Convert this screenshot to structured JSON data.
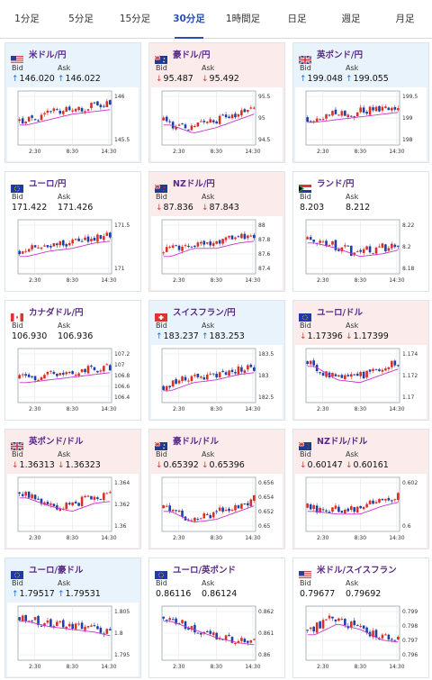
{
  "tabs": [
    {
      "label": "1分足",
      "active": false
    },
    {
      "label": "5分足",
      "active": false
    },
    {
      "label": "15分足",
      "active": false
    },
    {
      "label": "30分足",
      "active": true
    },
    {
      "label": "1時間足",
      "active": false
    },
    {
      "label": "日足",
      "active": false
    },
    {
      "label": "週足",
      "active": false
    },
    {
      "label": "月足",
      "active": false
    }
  ],
  "labels": {
    "bid": "Bid",
    "ask": "Ask"
  },
  "colors": {
    "up_bg": "#e9f3fc",
    "down_bg": "#fbebeb",
    "up_arrow": "#1c6fcf",
    "down_arrow": "#d23a3a",
    "candle_up": "#d93025",
    "candle_down": "#1f3fa8",
    "ma_line": "#cc33cc"
  },
  "cards": [
    {
      "name": "米ドル/円",
      "flag": "us",
      "dir": "up",
      "bid": "146.020",
      "ask": "146.022",
      "yticks": [
        "146",
        "145.5"
      ],
      "xticks": [
        "2:30",
        "8:30",
        "14:30"
      ],
      "seed": 1,
      "trend": [
        0.55,
        0.45,
        0.35,
        0.3,
        0.25
      ]
    },
    {
      "name": "豪ドル/円",
      "flag": "au",
      "dir": "down",
      "bid": "95.487",
      "ask": "95.492",
      "yticks": [
        "95.5",
        "95",
        "94.5"
      ],
      "xticks": [
        "2:30",
        "8:30",
        "14:30"
      ],
      "seed": 2,
      "trend": [
        0.55,
        0.7,
        0.6,
        0.45,
        0.3
      ]
    },
    {
      "name": "英ポンド/円",
      "flag": "gb",
      "dir": "up",
      "bid": "199.048",
      "ask": "199.055",
      "yticks": [
        "199.5",
        "199",
        "198"
      ],
      "xticks": [
        "2:30",
        "8:30",
        "14:30"
      ],
      "seed": 3,
      "trend": [
        0.5,
        0.45,
        0.4,
        0.35,
        0.3
      ]
    },
    {
      "name": "ユーロ/円",
      "flag": "eu",
      "dir": "flat",
      "bid": "171.422",
      "ask": "171.426",
      "yticks": [
        "171.5",
        "171"
      ],
      "xticks": [
        "2:30",
        "8:30",
        "14:30"
      ],
      "seed": 4,
      "trend": [
        0.6,
        0.5,
        0.45,
        0.35,
        0.3
      ]
    },
    {
      "name": "NZドル/円",
      "flag": "nz",
      "dir": "down",
      "bid": "87.836",
      "ask": "87.843",
      "yticks": [
        "88",
        "87.8",
        "87.6",
        "87.4"
      ],
      "xticks": [
        "2:30",
        "8:30",
        "14:30"
      ],
      "seed": 5,
      "trend": [
        0.6,
        0.45,
        0.45,
        0.35,
        0.3
      ]
    },
    {
      "name": "ランド/円",
      "flag": "za",
      "dir": "flat",
      "bid": "8.203",
      "ask": "8.212",
      "yticks": [
        "8.22",
        "8.2",
        "8.18"
      ],
      "xticks": [
        "2:30",
        "8:30",
        "14:30"
      ],
      "seed": 6,
      "trend": [
        0.35,
        0.45,
        0.6,
        0.55,
        0.45
      ]
    },
    {
      "name": "カナダドル/円",
      "flag": "ca",
      "dir": "flat",
      "bid": "106.930",
      "ask": "106.936",
      "yticks": [
        "107.2",
        "107",
        "106.8",
        "106.6",
        "106.4"
      ],
      "xticks": [
        "2:30",
        "8:30",
        "14:30"
      ],
      "seed": 7,
      "trend": [
        0.55,
        0.5,
        0.45,
        0.4,
        0.35
      ]
    },
    {
      "name": "スイスフラン/円",
      "flag": "ch",
      "dir": "up",
      "bid": "183.237",
      "ask": "183.253",
      "yticks": [
        "183.5",
        "183",
        "182.5"
      ],
      "xticks": [
        "2:30",
        "8:30",
        "14:30"
      ],
      "seed": 8,
      "trend": [
        0.7,
        0.55,
        0.5,
        0.4,
        0.35
      ]
    },
    {
      "name": "ユーロ/ドル",
      "flag": "eu",
      "dir": "down",
      "bid": "1.17396",
      "ask": "1.17399",
      "yticks": [
        "1.174",
        "1.172",
        "1.17"
      ],
      "xticks": [
        "2:30",
        "8:30",
        "14:30"
      ],
      "seed": 9,
      "trend": [
        0.25,
        0.5,
        0.55,
        0.4,
        0.25
      ]
    },
    {
      "name": "英ポンド/ドル",
      "flag": "gb",
      "dir": "down",
      "bid": "1.36313",
      "ask": "1.36323",
      "yticks": [
        "1.364",
        "1.362",
        "1.36"
      ],
      "xticks": [
        "2:30",
        "8:30",
        "14:30"
      ],
      "seed": 10,
      "trend": [
        0.3,
        0.45,
        0.55,
        0.4,
        0.35
      ]
    },
    {
      "name": "豪ドル/ドル",
      "flag": "au",
      "dir": "down",
      "bid": "0.65392",
      "ask": "0.65396",
      "yticks": [
        "0.656",
        "0.654",
        "0.652",
        "0.65"
      ],
      "xticks": [
        "2:30",
        "8:30",
        "14:30"
      ],
      "seed": 11,
      "trend": [
        0.55,
        0.75,
        0.7,
        0.55,
        0.4
      ]
    },
    {
      "name": "NZドル/ドル",
      "flag": "nz",
      "dir": "down",
      "bid": "0.60147",
      "ask": "0.60161",
      "yticks": [
        "0.602",
        "0.6"
      ],
      "xticks": [
        "2:30",
        "8:30",
        "14:30"
      ],
      "seed": 12,
      "trend": [
        0.55,
        0.6,
        0.6,
        0.45,
        0.35
      ]
    },
    {
      "name": "ユーロ/豪ドル",
      "flag": "eu",
      "dir": "up",
      "bid": "1.79517",
      "ask": "1.79531",
      "yticks": [
        "1.805",
        "1.8",
        "1.795"
      ],
      "xticks": [
        "2:30",
        "8:30",
        "14:30"
      ],
      "seed": 13,
      "trend": [
        0.2,
        0.3,
        0.35,
        0.4,
        0.5
      ]
    },
    {
      "name": "ユーロ/英ポンド",
      "flag": "eu",
      "dir": "flat",
      "bid": "0.86116",
      "ask": "0.86124",
      "yticks": [
        "0.862",
        "0.861",
        "0.86"
      ],
      "xticks": [
        "2:30",
        "8:30",
        "14:30"
      ],
      "seed": 14,
      "trend": [
        0.2,
        0.35,
        0.5,
        0.6,
        0.65
      ]
    },
    {
      "name": "米ドル/スイスフラン",
      "flag": "us",
      "dir": "flat",
      "bid": "0.79677",
      "ask": "0.79692",
      "yticks": [
        "0.799",
        "0.798",
        "0.797",
        "0.796"
      ],
      "xticks": [
        "2:30",
        "8:30",
        "14:30"
      ],
      "seed": 15,
      "trend": [
        0.45,
        0.25,
        0.35,
        0.55,
        0.6
      ]
    }
  ]
}
